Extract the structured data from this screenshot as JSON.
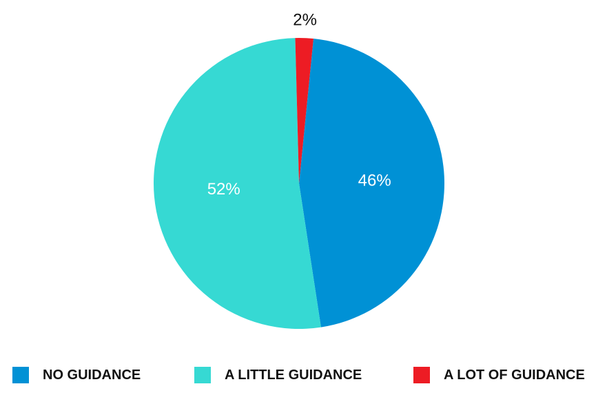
{
  "chart_data": {
    "type": "pie",
    "title": "",
    "slices": [
      {
        "label": "NO GUIDANCE",
        "value": 46,
        "value_label": "46%",
        "color": "#0091d5"
      },
      {
        "label": "A LITTLE GUIDANCE",
        "value": 52,
        "value_label": "52%",
        "color": "#36d9d3"
      },
      {
        "label": "A LOT OF GUIDANCE",
        "value": 2,
        "value_label": "2%",
        "color": "#ed1c24"
      }
    ],
    "legend_position": "bottom"
  }
}
